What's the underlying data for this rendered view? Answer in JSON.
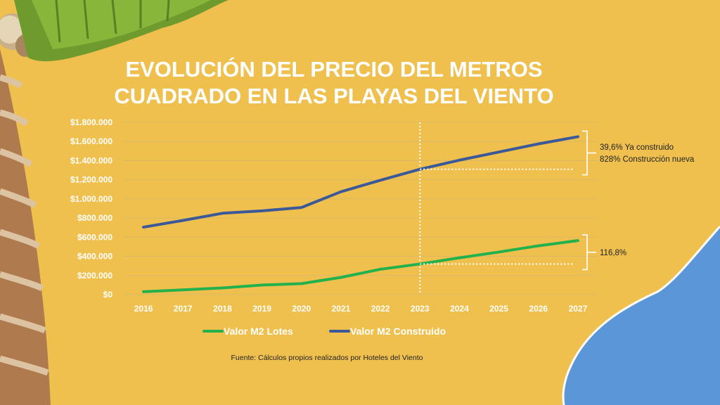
{
  "chart_data": {
    "type": "line",
    "title": "EVOLUCIÓN DEL PRECIO DEL METROS CUADRADO EN LAS PLAYAS DEL VIENTO",
    "title_lines": [
      "EVOLUCIÓN DEL PRECIO DEL METROS",
      "CUADRADO EN LAS PLAYAS DEL VIENTO"
    ],
    "xlabel": "",
    "ylabel": "",
    "categories": [
      "2016",
      "2017",
      "2018",
      "2019",
      "2020",
      "2021",
      "2022",
      "2023",
      "2024",
      "2025",
      "2026",
      "2027"
    ],
    "ylim": [
      0,
      1800000
    ],
    "yticks": [
      0,
      200000,
      400000,
      600000,
      800000,
      1000000,
      1200000,
      1400000,
      1600000,
      1800000
    ],
    "ytick_labels": [
      "$0",
      "$200.000",
      "$400.000",
      "$600.000",
      "$800.000",
      "$1.000.000",
      "$1.200.000",
      "$1.400.000",
      "$1.600.000",
      "$1.800.000"
    ],
    "grid": true,
    "legend_position": "bottom",
    "series": [
      {
        "name": "Valor M2 Lotes",
        "color": "#22b14c",
        "values": [
          30000,
          50000,
          70000,
          100000,
          115000,
          180000,
          265000,
          320000,
          385000,
          445000,
          510000,
          565000
        ]
      },
      {
        "name": "Valor M2 Construido",
        "color": "#3b5998",
        "values": [
          705000,
          775000,
          850000,
          875000,
          910000,
          1075000,
          1195000,
          1310000,
          1405000,
          1490000,
          1575000,
          1650000
        ]
      }
    ],
    "marker_category": "2023",
    "annotations": [
      {
        "lines": [
          "39,6% Ya construido",
          "828% Construcción nueva"
        ],
        "series": "Valor M2 Construido"
      },
      {
        "lines": [
          "116,8%"
        ],
        "series": "Valor M2 Lotes"
      }
    ],
    "source": "Fuente: Cálculos propios realizados por Hoteles del Viento"
  }
}
